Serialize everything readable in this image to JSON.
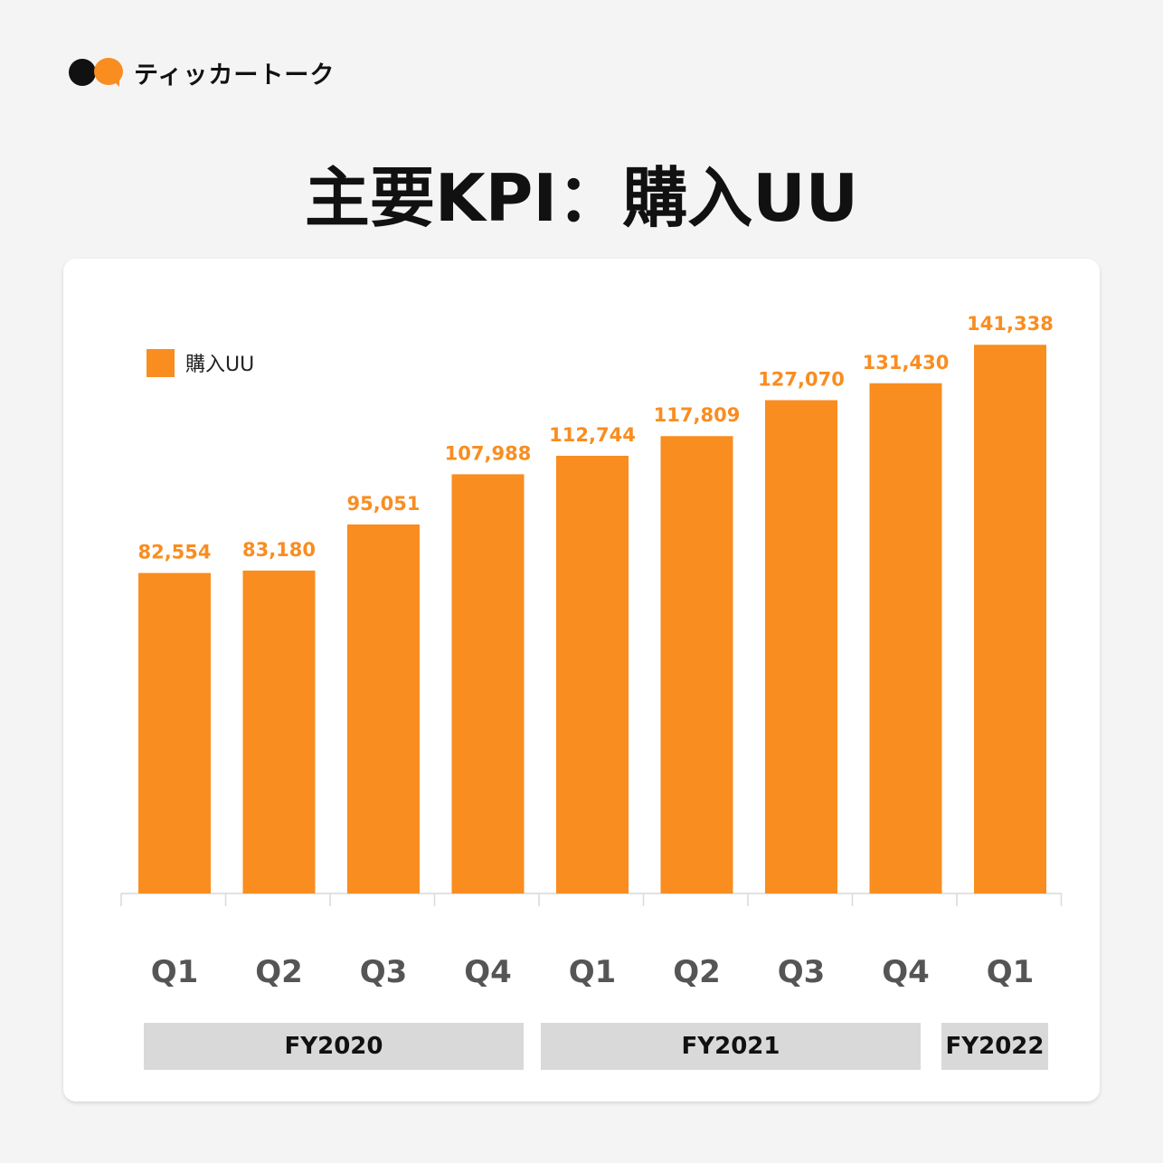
{
  "brand": {
    "name": "ティッカートーク",
    "colors": {
      "black": "#111111",
      "orange": "#f98d20"
    }
  },
  "title": "主要KPI：購入UU",
  "legend": {
    "label": "購入UU",
    "color": "#f98d20"
  },
  "fiscal_years": [
    "FY2020",
    "FY2021",
    "FY2022"
  ],
  "chart_data": {
    "type": "bar",
    "categories": [
      "Q1",
      "Q2",
      "Q3",
      "Q4",
      "Q1",
      "Q2",
      "Q3",
      "Q4",
      "Q1"
    ],
    "fiscal_year": [
      "FY2020",
      "FY2020",
      "FY2020",
      "FY2020",
      "FY2021",
      "FY2021",
      "FY2021",
      "FY2021",
      "FY2022"
    ],
    "series": [
      {
        "name": "購入UU",
        "color": "#f98d20",
        "values": [
          82554,
          83180,
          95051,
          107988,
          112744,
          117809,
          127070,
          131430,
          141338
        ],
        "labels": [
          "82,554",
          "83,180",
          "95,051",
          "107,988",
          "112,744",
          "117,809",
          "127,070",
          "131,430",
          "141,338"
        ]
      }
    ],
    "ylim": [
      0,
      155000
    ],
    "grid": false,
    "legend_position": "top-left",
    "data_labels": true
  }
}
